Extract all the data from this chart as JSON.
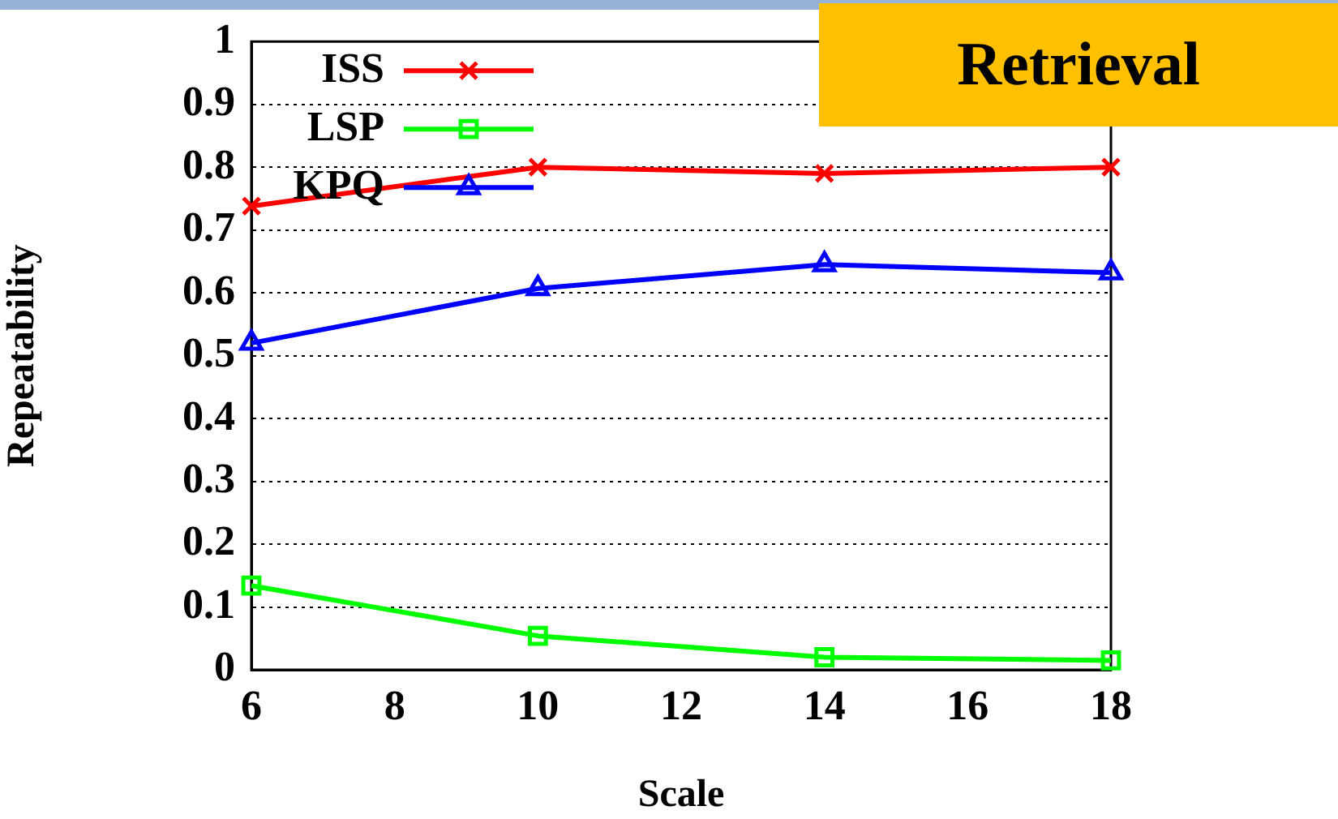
{
  "chart_data": {
    "type": "line",
    "xlabel": "Scale",
    "ylabel": "Repeatability",
    "annotations": [
      "Retrieval"
    ],
    "x": [
      6,
      10,
      14,
      18
    ],
    "series": [
      {
        "name": "ISS",
        "color": "#ff0000",
        "marker": "cross",
        "values": [
          0.738,
          0.8,
          0.79,
          0.8
        ]
      },
      {
        "name": "LSP",
        "color": "#00ff00",
        "marker": "square",
        "values": [
          0.134,
          0.054,
          0.02,
          0.015
        ]
      },
      {
        "name": "KPQ",
        "color": "#0000ff",
        "marker": "triangle",
        "values": [
          0.52,
          0.607,
          0.645,
          0.632
        ]
      }
    ],
    "xlim": [
      6,
      18
    ],
    "xticks": [
      6,
      8,
      10,
      12,
      14,
      16,
      18
    ],
    "ylim": [
      0,
      1
    ],
    "yticks": [
      0,
      0.1,
      0.2,
      0.3,
      0.4,
      0.5,
      0.6,
      0.7,
      0.8,
      0.9,
      1
    ],
    "grid": "y",
    "legend": "top left",
    "line_style": "solid"
  }
}
